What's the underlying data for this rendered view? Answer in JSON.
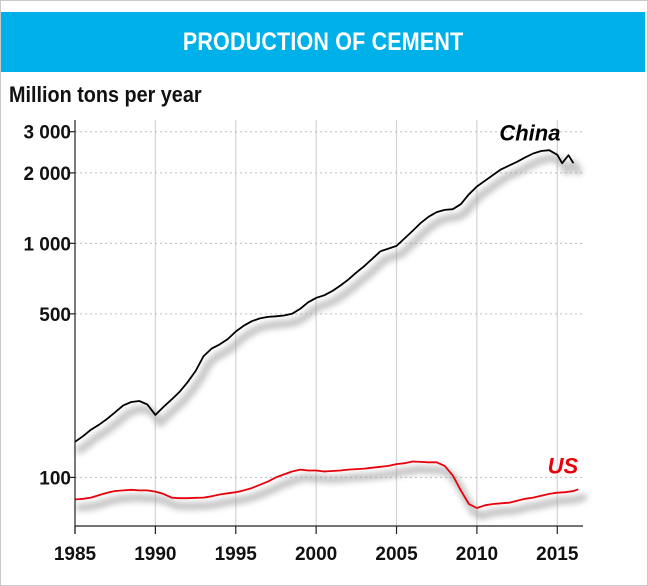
{
  "chart_data": {
    "type": "line",
    "title": "PRODUCTION OF CEMENT",
    "ylabel": "Million tons per year",
    "xlabel": "",
    "yscale": "log",
    "ylim": [
      62,
      3300
    ],
    "xlim": [
      1985,
      2016.6
    ],
    "x_ticks": [
      1985,
      1990,
      1995,
      2000,
      2005,
      2010,
      2015
    ],
    "x_tick_labels": [
      "1985",
      "1990",
      "1995",
      "2000",
      "2005",
      "2010",
      "2015"
    ],
    "y_ticks": [
      100,
      500,
      1000,
      2000,
      3000
    ],
    "y_tick_labels": [
      "100",
      "500",
      "1 000",
      "2 000",
      "3 000"
    ],
    "grid": true,
    "series": [
      {
        "name": "China",
        "color": "#000000",
        "label_year": 2015.2,
        "label_value": 2750,
        "points": [
          [
            1985.0,
            142
          ],
          [
            1985.5,
            150
          ],
          [
            1986.0,
            160
          ],
          [
            1986.5,
            168
          ],
          [
            1987.0,
            178
          ],
          [
            1987.5,
            190
          ],
          [
            1988.0,
            203
          ],
          [
            1988.5,
            210
          ],
          [
            1989.0,
            212
          ],
          [
            1989.5,
            205
          ],
          [
            1990.0,
            185
          ],
          [
            1990.5,
            200
          ],
          [
            1991.0,
            215
          ],
          [
            1991.5,
            232
          ],
          [
            1992.0,
            255
          ],
          [
            1992.5,
            285
          ],
          [
            1993.0,
            330
          ],
          [
            1993.5,
            355
          ],
          [
            1994.0,
            370
          ],
          [
            1994.5,
            390
          ],
          [
            1995.0,
            420
          ],
          [
            1995.5,
            445
          ],
          [
            1996.0,
            465
          ],
          [
            1996.5,
            478
          ],
          [
            1997.0,
            485
          ],
          [
            1997.5,
            488
          ],
          [
            1998.0,
            492
          ],
          [
            1998.5,
            500
          ],
          [
            1999.0,
            525
          ],
          [
            1999.5,
            560
          ],
          [
            2000.0,
            585
          ],
          [
            2000.5,
            600
          ],
          [
            2001.0,
            625
          ],
          [
            2001.5,
            660
          ],
          [
            2002.0,
            700
          ],
          [
            2002.5,
            750
          ],
          [
            2003.0,
            800
          ],
          [
            2003.5,
            860
          ],
          [
            2004.0,
            925
          ],
          [
            2004.5,
            950
          ],
          [
            2005.0,
            975
          ],
          [
            2005.5,
            1050
          ],
          [
            2006.0,
            1130
          ],
          [
            2006.5,
            1220
          ],
          [
            2007.0,
            1300
          ],
          [
            2007.5,
            1360
          ],
          [
            2008.0,
            1390
          ],
          [
            2008.5,
            1400
          ],
          [
            2009.0,
            1470
          ],
          [
            2009.5,
            1620
          ],
          [
            2010.0,
            1750
          ],
          [
            2010.5,
            1850
          ],
          [
            2011.0,
            1960
          ],
          [
            2011.5,
            2070
          ],
          [
            2012.0,
            2150
          ],
          [
            2012.5,
            2230
          ],
          [
            2013.0,
            2330
          ],
          [
            2013.5,
            2420
          ],
          [
            2014.0,
            2480
          ],
          [
            2014.5,
            2500
          ],
          [
            2015.0,
            2390
          ],
          [
            2015.3,
            2200
          ],
          [
            2015.7,
            2380
          ],
          [
            2016.0,
            2200
          ]
        ]
      },
      {
        "name": "US",
        "color": "#e8000b",
        "label_year": 2016.3,
        "label_value": 104,
        "points": [
          [
            1985.0,
            80.5
          ],
          [
            1985.5,
            81
          ],
          [
            1986.0,
            82
          ],
          [
            1986.5,
            84
          ],
          [
            1987.0,
            86
          ],
          [
            1987.5,
            87.5
          ],
          [
            1988.0,
            88
          ],
          [
            1988.5,
            88.5
          ],
          [
            1989.0,
            88
          ],
          [
            1989.5,
            88
          ],
          [
            1990.0,
            87
          ],
          [
            1990.5,
            85
          ],
          [
            1991.0,
            82
          ],
          [
            1991.5,
            81.5
          ],
          [
            1992.0,
            81.5
          ],
          [
            1992.5,
            81.8
          ],
          [
            1993.0,
            82
          ],
          [
            1993.5,
            83
          ],
          [
            1994.0,
            84.5
          ],
          [
            1994.5,
            85.5
          ],
          [
            1995.0,
            86.5
          ],
          [
            1995.5,
            88
          ],
          [
            1996.0,
            90
          ],
          [
            1996.5,
            93
          ],
          [
            1997.0,
            96
          ],
          [
            1997.5,
            100
          ],
          [
            1998.0,
            103
          ],
          [
            1998.5,
            106
          ],
          [
            1999.0,
            108
          ],
          [
            1999.5,
            107
          ],
          [
            2000.0,
            107
          ],
          [
            2000.5,
            106
          ],
          [
            2001.0,
            106.5
          ],
          [
            2001.5,
            107
          ],
          [
            2002.0,
            108
          ],
          [
            2002.5,
            108.5
          ],
          [
            2003.0,
            109
          ],
          [
            2003.5,
            110
          ],
          [
            2004.0,
            111
          ],
          [
            2004.5,
            112
          ],
          [
            2005.0,
            114
          ],
          [
            2005.5,
            115
          ],
          [
            2006.0,
            117
          ],
          [
            2006.5,
            116.5
          ],
          [
            2007.0,
            116
          ],
          [
            2007.5,
            116
          ],
          [
            2008.0,
            112
          ],
          [
            2008.5,
            102
          ],
          [
            2009.0,
            88
          ],
          [
            2009.5,
            77
          ],
          [
            2010.0,
            74
          ],
          [
            2010.5,
            76
          ],
          [
            2011.0,
            77
          ],
          [
            2011.5,
            77.5
          ],
          [
            2012.0,
            78
          ],
          [
            2012.5,
            79.5
          ],
          [
            2013.0,
            81
          ],
          [
            2013.5,
            82
          ],
          [
            2014.0,
            83.5
          ],
          [
            2014.5,
            85
          ],
          [
            2015.0,
            86
          ],
          [
            2015.5,
            86.5
          ],
          [
            2016.0,
            87.5
          ],
          [
            2016.3,
            89
          ]
        ]
      }
    ]
  }
}
